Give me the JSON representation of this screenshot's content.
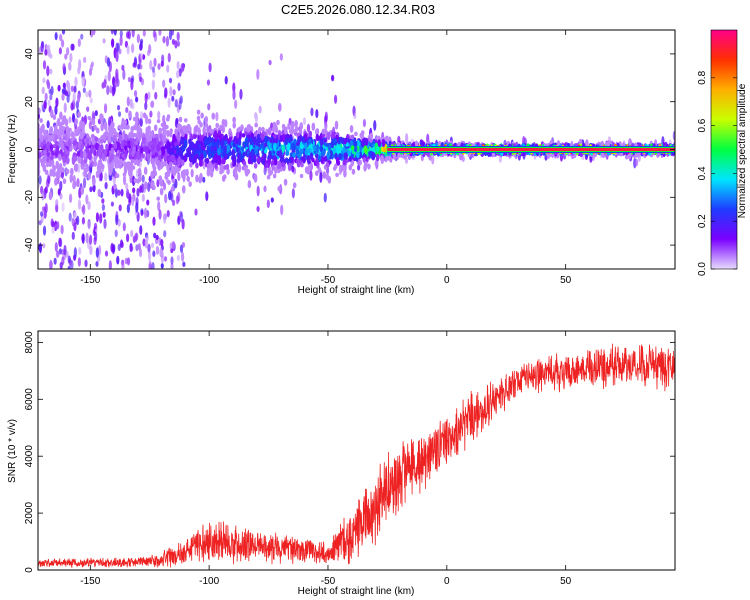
{
  "figure": {
    "title": "C2E5.2026.080.12.34.R03"
  },
  "chart_data": [
    {
      "type": "heatmap",
      "id": "spectrogram",
      "xlabel": "Height of straight line (km)",
      "ylabel": "Frequency (Hz)",
      "xlim": [
        -172,
        96
      ],
      "ylim": [
        -50,
        50
      ],
      "xticks": [
        -150,
        -100,
        -50,
        0,
        50
      ],
      "yticks": [
        -40,
        -20,
        0,
        20,
        40
      ],
      "colorbar": {
        "label": "Normalized spectral amplitude",
        "range": [
          0,
          1
        ],
        "ticks": [
          0.0,
          0.2,
          0.4,
          0.6,
          0.8
        ],
        "tick_labels": [
          "0.0",
          "0.2",
          "0.4",
          "0.6",
          "0.8"
        ],
        "colormap": [
          "#e8dcff",
          "#7a00ff",
          "#1e3cff",
          "#00e5ff",
          "#00ff40",
          "#c8ff00",
          "#ffb000",
          "#ff3000",
          "#ff0088"
        ]
      },
      "carrier_frequency_hz": 0,
      "band_profile": [
        {
          "x": -170,
          "halfwidth_hz": 50,
          "peak_amplitude": 0.1
        },
        {
          "x": -120,
          "halfwidth_hz": 50,
          "peak_amplitude": 0.12
        },
        {
          "x": -110,
          "halfwidth_hz": 10,
          "peak_amplitude": 0.25
        },
        {
          "x": -80,
          "halfwidth_hz": 9,
          "peak_amplitude": 0.35
        },
        {
          "x": -50,
          "halfwidth_hz": 8,
          "peak_amplitude": 0.4
        },
        {
          "x": -30,
          "halfwidth_hz": 4,
          "peak_amplitude": 0.55
        },
        {
          "x": -20,
          "halfwidth_hz": 2,
          "peak_amplitude": 0.85
        },
        {
          "x": 0,
          "halfwidth_hz": 1.5,
          "peak_amplitude": 0.95
        },
        {
          "x": 95,
          "halfwidth_hz": 1.5,
          "peak_amplitude": 0.97
        }
      ]
    },
    {
      "type": "line",
      "id": "snr",
      "xlabel": "Height of straight line (km)",
      "ylabel": "SNR (10 * v/v)",
      "xlim": [
        -172,
        96
      ],
      "ylim": [
        0,
        8400
      ],
      "xticks": [
        -150,
        -100,
        -50,
        0,
        50
      ],
      "yticks": [
        0,
        2000,
        4000,
        6000,
        8000
      ],
      "color": "#ee2222",
      "series": [
        {
          "name": "SNR",
          "envelope_x": [
            -172,
            -150,
            -130,
            -120,
            -112,
            -105,
            -95,
            -85,
            -75,
            -60,
            -50,
            -45,
            -40,
            -35,
            -30,
            -25,
            -20,
            -15,
            -10,
            -5,
            0,
            5,
            10,
            15,
            20,
            25,
            30,
            40,
            50,
            60,
            70,
            80,
            90,
            95
          ],
          "envelope_mean": [
            250,
            250,
            280,
            350,
            600,
            900,
            1000,
            900,
            800,
            700,
            600,
            900,
            1200,
            1700,
            2300,
            2900,
            3300,
            3600,
            3900,
            4200,
            4500,
            4900,
            5300,
            5600,
            5900,
            6300,
            6700,
            6900,
            7000,
            7100,
            7150,
            7200,
            7100,
            7050
          ],
          "envelope_spread": [
            150,
            150,
            180,
            250,
            450,
            650,
            700,
            650,
            550,
            450,
            400,
            700,
            900,
            1200,
            1300,
            1300,
            1200,
            1100,
            1000,
            900,
            900,
            900,
            850,
            800,
            700,
            650,
            600,
            600,
            650,
            700,
            700,
            700,
            700,
            700
          ]
        }
      ]
    }
  ]
}
